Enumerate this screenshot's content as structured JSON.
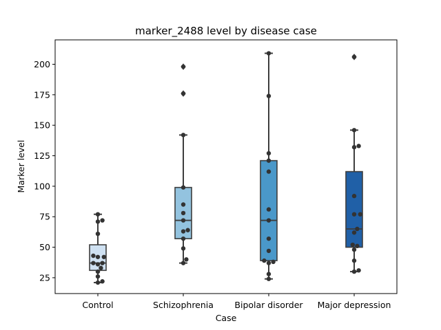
{
  "chart_data": {
    "type": "box",
    "title": "marker_2488 level by disease case",
    "xlabel": "Case",
    "ylabel": "Marker level",
    "ylim": [
      12,
      220
    ],
    "yticks": [
      25,
      50,
      75,
      100,
      125,
      150,
      175,
      200
    ],
    "grid": false,
    "categories": [
      "Control",
      "Schizophrenia",
      "Bipolar disorder",
      "Major depression"
    ],
    "colors": {
      "box_fills": [
        "#cfe1f2",
        "#93c3df",
        "#4a98c9",
        "#2060a7"
      ],
      "edge": "#3d3d3d",
      "points": "#333333"
    },
    "boxes": [
      {
        "q1": 31,
        "median": 37,
        "q3": 52,
        "whisker_low": 21,
        "whisker_high": 77,
        "outliers": []
      },
      {
        "q1": 57,
        "median": 72,
        "q3": 99,
        "whisker_low": 37,
        "whisker_high": 142,
        "outliers": [
          176,
          198
        ]
      },
      {
        "q1": 39,
        "median": 72,
        "q3": 121,
        "whisker_low": 24,
        "whisker_high": 209,
        "outliers": []
      },
      {
        "q1": 50,
        "median": 65,
        "q3": 112,
        "whisker_low": 30,
        "whisker_high": 146,
        "outliers": [
          206
        ]
      }
    ],
    "points": [
      [
        77,
        72,
        71,
        61,
        43,
        42,
        42,
        37,
        37,
        36,
        33,
        30,
        26,
        22,
        21
      ],
      [
        198,
        176,
        142,
        99,
        85,
        78,
        72,
        64,
        63,
        57,
        49,
        40,
        37
      ],
      [
        209,
        174,
        127,
        121,
        112,
        81,
        72,
        57,
        47,
        39,
        38,
        37,
        28,
        24
      ],
      [
        206,
        146,
        133,
        132,
        92,
        77,
        77,
        65,
        62,
        52,
        51,
        48,
        39,
        31,
        30
      ]
    ]
  }
}
